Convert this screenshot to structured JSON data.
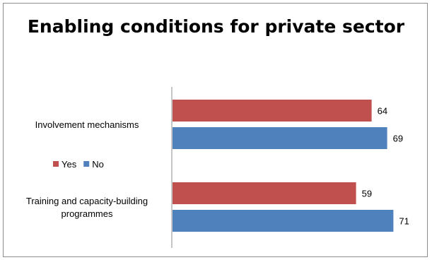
{
  "chart_data": {
    "type": "bar",
    "orientation": "horizontal",
    "title": "Enabling conditions for private sector",
    "categories": [
      "Involvement mechanisms",
      "Training and capacity-building programmes"
    ],
    "category_lines": [
      [
        "Involvement mechanisms"
      ],
      [
        "Training and capacity-building",
        "programmes"
      ]
    ],
    "series": [
      {
        "name": "Yes",
        "color": "#c0504d",
        "values": [
          64,
          59
        ]
      },
      {
        "name": "No",
        "color": "#4f81bd",
        "values": [
          69,
          71
        ]
      }
    ],
    "xlim": [
      0,
      75
    ],
    "legend_position": "left"
  }
}
